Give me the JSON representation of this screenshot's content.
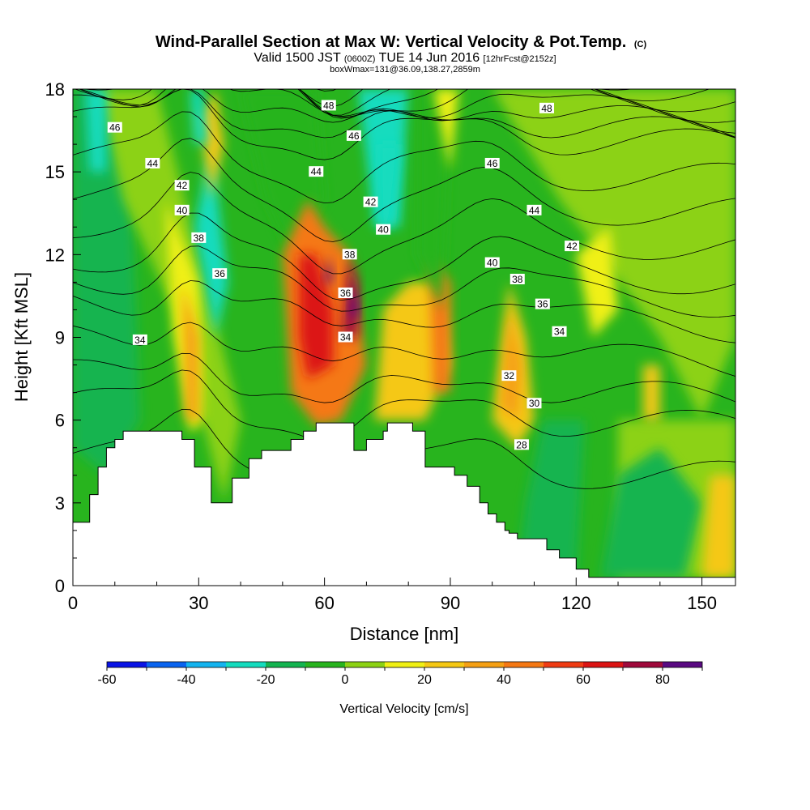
{
  "chart_data": {
    "type": "heatmap",
    "title": "Wind-Parallel Section at Max W: Vertical Velocity & Pot.Temp.",
    "title_mark": "(C)",
    "subtitle_main": "Valid 1500 JST",
    "subtitle_z": "(0600Z)",
    "subtitle_date": "TUE 14 Jun 2016",
    "subtitle_fcst": "[12hrFcst@2152z]",
    "subtitle2": "boxWmax=131@36.09,138.27,2859m",
    "xlabel": "Distance [nm]",
    "ylabel": "Height [Kft MSL]",
    "xlim": [
      0,
      158
    ],
    "ylim": [
      0,
      18
    ],
    "x_ticks": [
      0,
      30,
      60,
      90,
      120,
      150
    ],
    "y_ticks": [
      0,
      3,
      6,
      9,
      12,
      15,
      18
    ],
    "colorbar": {
      "label": "Vertical Velocity [cm/s]",
      "min": -60,
      "max": 90,
      "step": 10,
      "tick_values": [
        -60,
        -40,
        -20,
        0,
        20,
        40,
        60,
        80
      ],
      "colors": [
        "#0a14e6",
        "#0a64f0",
        "#14b4f0",
        "#14dcbe",
        "#14b450",
        "#28b41e",
        "#8cd214",
        "#f0f014",
        "#f5c814",
        "#f5a014",
        "#f57814",
        "#f03c14",
        "#dc1414",
        "#a00a3c",
        "#5a0a82"
      ]
    },
    "theta_contours": {
      "levels": [
        28,
        30,
        32,
        34,
        36,
        38,
        40,
        42,
        44,
        46,
        48
      ],
      "labels": [
        {
          "x": 10,
          "y": 16.6,
          "v": "46"
        },
        {
          "x": 19,
          "y": 15.3,
          "v": "44"
        },
        {
          "x": 26,
          "y": 14.5,
          "v": "42"
        },
        {
          "x": 26,
          "y": 13.6,
          "v": "40"
        },
        {
          "x": 30,
          "y": 12.6,
          "v": "38"
        },
        {
          "x": 35,
          "y": 11.3,
          "v": "36"
        },
        {
          "x": 16,
          "y": 8.9,
          "v": "34"
        },
        {
          "x": 61,
          "y": 17.4,
          "v": "48"
        },
        {
          "x": 67,
          "y": 16.3,
          "v": "46"
        },
        {
          "x": 58,
          "y": 15.0,
          "v": "44"
        },
        {
          "x": 71,
          "y": 13.9,
          "v": "42"
        },
        {
          "x": 74,
          "y": 12.9,
          "v": "40"
        },
        {
          "x": 66,
          "y": 12.0,
          "v": "38"
        },
        {
          "x": 65,
          "y": 10.6,
          "v": "36"
        },
        {
          "x": 65,
          "y": 9.0,
          "v": "34"
        },
        {
          "x": 113,
          "y": 17.3,
          "v": "48"
        },
        {
          "x": 100,
          "y": 15.3,
          "v": "46"
        },
        {
          "x": 110,
          "y": 13.6,
          "v": "44"
        },
        {
          "x": 119,
          "y": 12.3,
          "v": "42"
        },
        {
          "x": 100,
          "y": 11.7,
          "v": "40"
        },
        {
          "x": 106,
          "y": 11.1,
          "v": "38"
        },
        {
          "x": 112,
          "y": 10.2,
          "v": "36"
        },
        {
          "x": 116,
          "y": 9.2,
          "v": "34"
        },
        {
          "x": 104,
          "y": 7.6,
          "v": "32"
        },
        {
          "x": 110,
          "y": 6.6,
          "v": "30"
        },
        {
          "x": 107,
          "y": 5.1,
          "v": "28"
        }
      ]
    },
    "terrain": {
      "x": [
        0,
        4,
        4,
        6,
        6,
        8,
        8,
        10,
        10,
        12,
        12,
        14,
        14,
        26,
        26,
        29,
        29,
        33,
        33,
        38,
        38,
        42,
        42,
        45,
        45,
        52,
        52,
        55,
        55,
        58,
        58,
        67,
        67,
        70,
        70,
        74,
        74,
        75,
        75,
        81,
        81,
        84,
        84,
        91,
        91,
        94,
        94,
        97,
        97,
        99,
        99,
        101,
        101,
        103,
        103,
        104,
        104,
        106,
        106,
        113,
        113,
        116,
        116,
        120,
        120,
        123,
        123,
        126,
        126,
        158
      ],
      "y": [
        2.3,
        2.3,
        3.3,
        3.3,
        4.3,
        4.3,
        5.0,
        5.0,
        5.3,
        5.3,
        5.6,
        5.6,
        5.6,
        5.6,
        5.3,
        5.3,
        4.3,
        4.3,
        3.0,
        3.0,
        3.9,
        3.9,
        4.6,
        4.6,
        4.9,
        4.9,
        5.3,
        5.3,
        5.6,
        5.6,
        5.9,
        5.9,
        4.9,
        4.9,
        5.3,
        5.3,
        5.6,
        5.6,
        5.9,
        5.9,
        5.6,
        5.6,
        4.3,
        4.3,
        4.0,
        4.0,
        3.6,
        3.6,
        3.0,
        3.0,
        2.6,
        2.6,
        2.3,
        2.3,
        2.0,
        2.0,
        1.9,
        1.9,
        1.7,
        1.7,
        1.3,
        1.3,
        1.0,
        1.0,
        0.6,
        0.6,
        0.3,
        0.3,
        0.3,
        0.3
      ]
    }
  }
}
